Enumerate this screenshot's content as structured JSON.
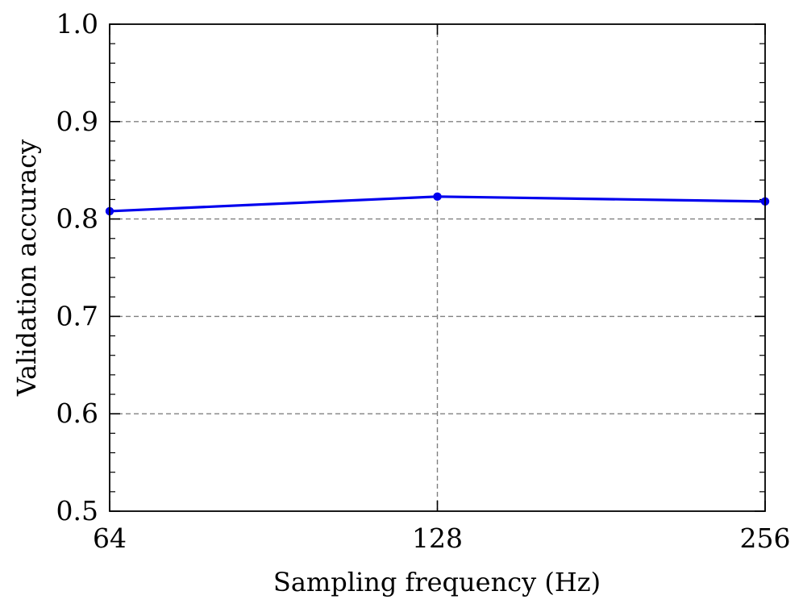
{
  "chart_data": {
    "type": "line",
    "title": "",
    "xlabel": "Sampling frequency (Hz)",
    "ylabel": "Validation accuracy",
    "x_categories": [
      "64",
      "128",
      "256"
    ],
    "x_scale": "log2",
    "ylim": [
      0.5,
      1.0
    ],
    "y_ticks": [
      "0.5",
      "0.6",
      "0.7",
      "0.8",
      "0.9",
      "1.0"
    ],
    "grid": true,
    "legend": "none",
    "series": [
      {
        "color": "#0000ee",
        "x": [
          64,
          128,
          256
        ],
        "values": [
          0.808,
          0.823,
          0.818
        ]
      }
    ]
  }
}
